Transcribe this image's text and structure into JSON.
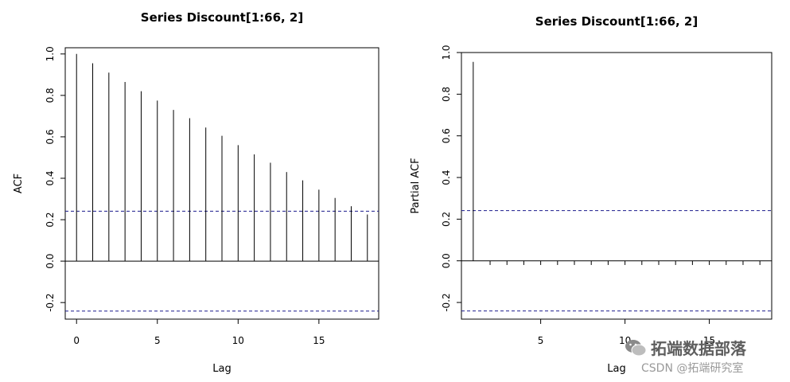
{
  "chart_data": [
    {
      "type": "bar",
      "title": "Series Discount[1:66, 2]",
      "xlabel": "Lag",
      "ylabel": "ACF",
      "x": [
        0,
        1,
        2,
        3,
        4,
        5,
        6,
        7,
        8,
        9,
        10,
        11,
        12,
        13,
        14,
        15,
        16,
        17,
        18
      ],
      "values": [
        1.0,
        0.955,
        0.91,
        0.865,
        0.82,
        0.775,
        0.73,
        0.69,
        0.645,
        0.605,
        0.56,
        0.515,
        0.475,
        0.43,
        0.39,
        0.345,
        0.305,
        0.265,
        0.225
      ],
      "xlim": [
        -0.7,
        18.7
      ],
      "ylim": [
        -0.28,
        1.03
      ],
      "xticks": [
        0,
        5,
        10,
        15
      ],
      "xtick_labels": [
        "0",
        "5",
        "10",
        "15"
      ],
      "yticks": [
        -0.2,
        0.0,
        0.2,
        0.4,
        0.6,
        0.8,
        1.0
      ],
      "ytick_labels": [
        "-0.2",
        "0.0",
        "0.2",
        "0.4",
        "0.6",
        "0.8",
        "1.0"
      ],
      "ci": [
        0.241,
        -0.241
      ],
      "ci_color": "#1a1a8c"
    },
    {
      "type": "bar",
      "title": "Series Discount[1:66, 2]",
      "xlabel": "Lag",
      "ylabel": "Partial ACF",
      "x": [
        1,
        2,
        3,
        4,
        5,
        6,
        7,
        8,
        9,
        10,
        11,
        12,
        13,
        14,
        15,
        16,
        17,
        18
      ],
      "values": [
        0.955,
        -0.02,
        -0.02,
        -0.02,
        -0.02,
        -0.02,
        -0.02,
        -0.02,
        -0.02,
        -0.02,
        -0.02,
        -0.02,
        -0.02,
        -0.02,
        -0.02,
        -0.02,
        -0.02,
        -0.02
      ],
      "xlim": [
        0.3,
        18.7
      ],
      "ylim": [
        -0.28,
        1.0
      ],
      "xticks": [
        5,
        10,
        15
      ],
      "xtick_labels": [
        "5",
        "10",
        "15"
      ],
      "yticks": [
        -0.2,
        0.0,
        0.2,
        0.4,
        0.6,
        0.8,
        1.0
      ],
      "ytick_labels": [
        "-0.2",
        "0.0",
        "0.2",
        "0.4",
        "0.6",
        "0.8",
        "1.0"
      ],
      "ci": [
        0.241,
        -0.241
      ],
      "ci_color": "#1a1a8c"
    }
  ],
  "watermark": {
    "brand": "拓端数据部落",
    "sub": "CSDN @拓端研究室",
    "icon": "wechat-icon"
  }
}
